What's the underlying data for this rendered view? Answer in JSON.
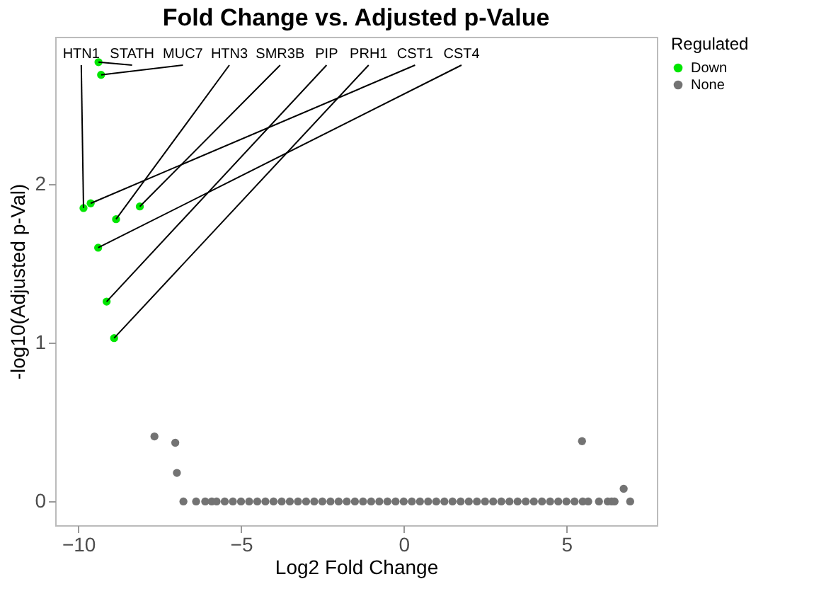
{
  "chart_data": {
    "type": "scatter",
    "title": "Fold Change vs. Adjusted p-Value",
    "xlabel": "Log2 Fold Change",
    "ylabel": "-log10(Adjusted p-Val)",
    "legend_title": "Regulated",
    "legend": "right",
    "marker": "circle",
    "xlim": [
      -10.71,
      7.78
    ],
    "ylim": [
      -0.15,
      2.93
    ],
    "xticks": [
      -10,
      -5,
      0,
      5
    ],
    "yticks": [
      0,
      1,
      2
    ],
    "series": [
      {
        "name": "Down",
        "color": "#00e600",
        "x": [
          -9.84,
          -9.62,
          -9.38,
          -9.3,
          -8.84,
          -8.11,
          -9.39,
          -9.13,
          -8.9
        ],
        "values": [
          1.85,
          1.88,
          2.77,
          2.69,
          1.78,
          1.86,
          1.6,
          1.26,
          1.03
        ]
      },
      {
        "name": "None",
        "color": "#737373",
        "x": [
          -7.66,
          -7.02,
          -6.97,
          5.48,
          6.76,
          6.96,
          -6.77,
          -6.38,
          -6.1,
          -5.9,
          -5.75,
          -5.5,
          -5.25,
          -5,
          -4.75,
          -4.5,
          -4.25,
          -4,
          -3.75,
          -3.5,
          -3.25,
          -3,
          -2.75,
          -2.5,
          -2.25,
          -2,
          -1.75,
          -1.5,
          -1.25,
          -1,
          -0.75,
          -0.5,
          -0.25,
          0,
          0.25,
          0.5,
          0.75,
          1,
          1.25,
          1.5,
          1.75,
          2,
          2.25,
          2.5,
          2.75,
          3,
          3.25,
          3.5,
          3.75,
          4,
          4.25,
          4.5,
          4.75,
          5,
          5.25,
          5.5,
          5.67,
          6,
          6.27,
          6.39,
          6.48
        ],
        "values": [
          0.41,
          0.37,
          0.18,
          0.38,
          0.08,
          0,
          0,
          0,
          0,
          0,
          0,
          0,
          0,
          0,
          0,
          0,
          0,
          0,
          0,
          0,
          0,
          0,
          0,
          0,
          0,
          0,
          0,
          0,
          0,
          0,
          0,
          0,
          0,
          0,
          0,
          0,
          0,
          0,
          0,
          0,
          0,
          0,
          0,
          0,
          0,
          0,
          0,
          0,
          0,
          0,
          0,
          0,
          0,
          0,
          0,
          0,
          0,
          0,
          0,
          0,
          0
        ]
      }
    ],
    "annotations": [
      {
        "text": "HTN1",
        "x": -9.84,
        "y": 1.85
      },
      {
        "text": "STATH",
        "x": -9.38,
        "y": 2.77
      },
      {
        "text": "MUC7",
        "x": -9.3,
        "y": 2.69
      },
      {
        "text": "HTN3",
        "x": -8.84,
        "y": 1.78
      },
      {
        "text": "SMR3B",
        "x": -8.11,
        "y": 1.86
      },
      {
        "text": "PIP",
        "x": -9.13,
        "y": 1.26
      },
      {
        "text": "PRH1",
        "x": -8.9,
        "y": 1.03
      },
      {
        "text": "CST1",
        "x": -9.62,
        "y": 1.88
      },
      {
        "text": "CST4",
        "x": -9.39,
        "y": 1.6
      }
    ]
  }
}
